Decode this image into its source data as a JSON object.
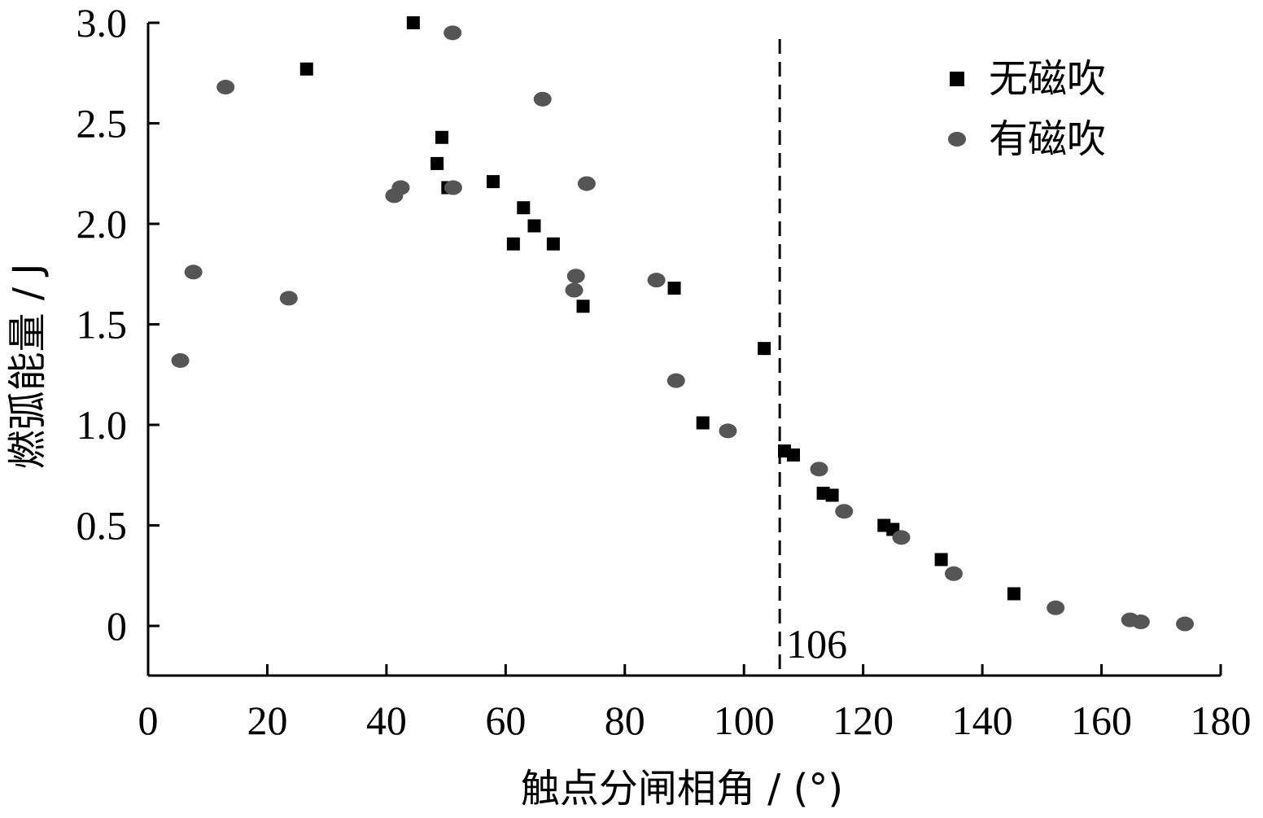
{
  "chart_data": {
    "type": "scatter",
    "title": "",
    "xlabel": "触点分闸相角 / (°)",
    "ylabel": "燃弧能量 / J",
    "xlim": [
      0,
      180
    ],
    "ylim": [
      -0.25,
      3.0
    ],
    "xticks": [
      "0",
      "20",
      "40",
      "60",
      "80",
      "100",
      "120",
      "140",
      "160",
      "180"
    ],
    "yticks": [
      "0",
      "0.5",
      "1.0",
      "1.5",
      "2.0",
      "2.5",
      "3.0"
    ],
    "xtick_values": [
      0,
      20,
      40,
      60,
      80,
      100,
      120,
      140,
      160,
      180
    ],
    "ytick_values": [
      0,
      0.5,
      1.0,
      1.5,
      2.0,
      2.5,
      3.0
    ],
    "legend_position": "top-right",
    "reference_line": {
      "x": 106,
      "label": "106",
      "style": "dashed"
    },
    "series": [
      {
        "name": "无磁吹",
        "marker": "square",
        "color": "#000000",
        "points": [
          [
            26.6,
            2.77
          ],
          [
            44.5,
            3.0
          ],
          [
            48.5,
            2.3
          ],
          [
            49.3,
            2.43
          ],
          [
            50.3,
            2.18
          ],
          [
            57.9,
            2.21
          ],
          [
            61.3,
            1.9
          ],
          [
            63.0,
            2.08
          ],
          [
            64.8,
            1.99
          ],
          [
            68.0,
            1.9
          ],
          [
            73.0,
            1.59
          ],
          [
            88.3,
            1.68
          ],
          [
            93.1,
            1.01
          ],
          [
            103.4,
            1.38
          ],
          [
            106.8,
            0.87
          ],
          [
            108.3,
            0.85
          ],
          [
            113.3,
            0.66
          ],
          [
            114.8,
            0.65
          ],
          [
            123.5,
            0.5
          ],
          [
            125.0,
            0.48
          ],
          [
            133.1,
            0.33
          ],
          [
            145.3,
            0.16
          ]
        ]
      },
      {
        "name": "有磁吹",
        "marker": "circle",
        "color": "#555555",
        "points": [
          [
            5.4,
            1.32
          ],
          [
            7.6,
            1.76
          ],
          [
            13.0,
            2.68
          ],
          [
            23.6,
            1.63
          ],
          [
            41.3,
            2.14
          ],
          [
            42.4,
            2.18
          ],
          [
            51.1,
            2.95
          ],
          [
            51.2,
            2.18
          ],
          [
            66.2,
            2.62
          ],
          [
            71.5,
            1.67
          ],
          [
            71.8,
            1.74
          ],
          [
            73.6,
            2.2
          ],
          [
            85.3,
            1.72
          ],
          [
            88.6,
            1.22
          ],
          [
            97.3,
            0.97
          ],
          [
            112.6,
            0.78
          ],
          [
            116.8,
            0.57
          ],
          [
            126.4,
            0.44
          ],
          [
            135.2,
            0.26
          ],
          [
            152.3,
            0.09
          ],
          [
            164.8,
            0.03
          ],
          [
            166.6,
            0.02
          ],
          [
            174.0,
            0.01
          ]
        ]
      }
    ]
  }
}
